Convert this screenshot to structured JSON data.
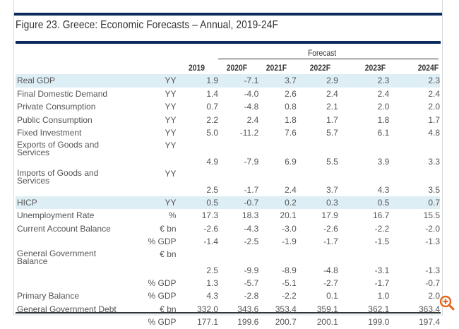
{
  "figure": {
    "title": "Figure 23. Greece: Economic Forecasts – Annual, 2019-24F",
    "forecast_label": "Forecast",
    "columns": [
      "2019",
      "2020F",
      "2021F",
      "2022F",
      "2023F",
      "2024F"
    ],
    "rows": [
      {
        "label": "Real GDP",
        "unit": "YY",
        "values": [
          "1.9",
          "-7.1",
          "3.7",
          "2.9",
          "2.3",
          "2.3"
        ],
        "highlight": true
      },
      {
        "label": "Final Domestic Demand",
        "unit": "YY",
        "values": [
          "1.4",
          "-4.0",
          "2.6",
          "2.4",
          "2.4",
          "2.4"
        ]
      },
      {
        "label": "Private Consumption",
        "unit": "YY",
        "values": [
          "0.7",
          "-4.8",
          "0.8",
          "2.1",
          "2.0",
          "2.0"
        ]
      },
      {
        "label": "Public Consumption",
        "unit": "YY",
        "values": [
          "2.2",
          "2.4",
          "1.8",
          "1.7",
          "1.8",
          "1.7"
        ]
      },
      {
        "label": "Fixed Investment",
        "unit": "YY",
        "values": [
          "5.0",
          "-11.2",
          "7.6",
          "5.7",
          "6.1",
          "4.8"
        ]
      },
      {
        "label": "Exports of Goods and Services",
        "unit": "YY",
        "values": [
          "4.9",
          "-7.9",
          "6.9",
          "5.5",
          "3.9",
          "3.3"
        ],
        "two_line": true
      },
      {
        "label": "Imports of Goods and Services",
        "unit": "YY",
        "values": [
          "2.5",
          "-1.7",
          "2.4",
          "3.7",
          "4.3",
          "3.5"
        ],
        "two_line": true
      },
      {
        "label": "HICP",
        "unit": "YY",
        "values": [
          "0.5",
          "-0.7",
          "0.2",
          "0.3",
          "0.5",
          "0.7"
        ],
        "highlight": true
      },
      {
        "label": "Unemployment Rate",
        "unit": "%",
        "values": [
          "17.3",
          "18.3",
          "20.1",
          "17.9",
          "16.7",
          "15.5"
        ]
      },
      {
        "label": "Current Account Balance",
        "unit": "€ bn",
        "values": [
          "-2.6",
          "-4.3",
          "-3.0",
          "-2.6",
          "-2.2",
          "-2.0"
        ]
      },
      {
        "label": "",
        "unit": "% GDP",
        "values": [
          "-1.4",
          "-2.5",
          "-1.9",
          "-1.7",
          "-1.5",
          "-1.3"
        ]
      },
      {
        "label": "General Government Balance",
        "unit": "€ bn",
        "values": [
          "2.5",
          "-9.9",
          "-8.9",
          "-4.8",
          "-3.1",
          "-1.3"
        ],
        "two_line": true
      },
      {
        "label": "",
        "unit": "% GDP",
        "values": [
          "1.3",
          "-5.7",
          "-5.1",
          "-2.7",
          "-1.7",
          "-0.7"
        ]
      },
      {
        "label": "Primary Balance",
        "unit": "% GDP",
        "values": [
          "4.3",
          "-2.8",
          "-2.2",
          "0.1",
          "1.0",
          "2.0"
        ]
      },
      {
        "label": "General Government Debt",
        "unit": "€ bn",
        "values": [
          "332.0",
          "343.6",
          "353.4",
          "359.1",
          "362.1",
          "363.4"
        ]
      },
      {
        "label": "",
        "unit": "% GDP",
        "values": [
          "177.1",
          "199.6",
          "200.7",
          "200.1",
          "199.0",
          "197.4"
        ]
      }
    ]
  },
  "colors": {
    "rule": "#0d2a5c",
    "highlight_row": "#deeef5",
    "zoom_icon": "#e8641c"
  },
  "icons": {
    "zoom": "zoom-in-magnifier-icon"
  }
}
